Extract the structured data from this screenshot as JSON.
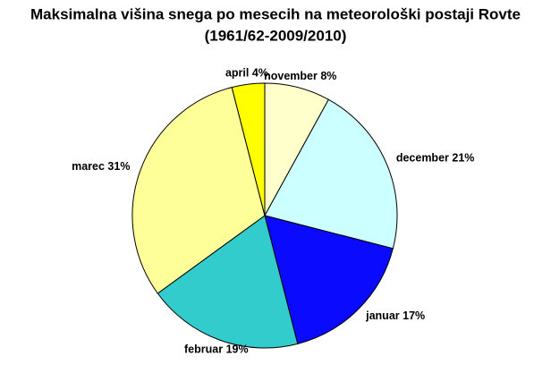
{
  "chart_data": {
    "type": "pie",
    "title": "Maksimalna višina snega po mesecih na meteorološki postaji Rovte",
    "subtitle": "(1961/62-2009/2010)",
    "categories": [
      "november",
      "december",
      "januar",
      "februar",
      "marec",
      "april"
    ],
    "values": [
      8,
      21,
      17,
      19,
      31,
      4
    ],
    "value_labels": [
      "8%",
      "21%",
      "17%",
      "19%",
      "31%",
      "4%"
    ],
    "colors": [
      "#ffffcc",
      "#ccffff",
      "#0a0aff",
      "#33cccc",
      "#ffff99",
      "#ffff00"
    ]
  }
}
